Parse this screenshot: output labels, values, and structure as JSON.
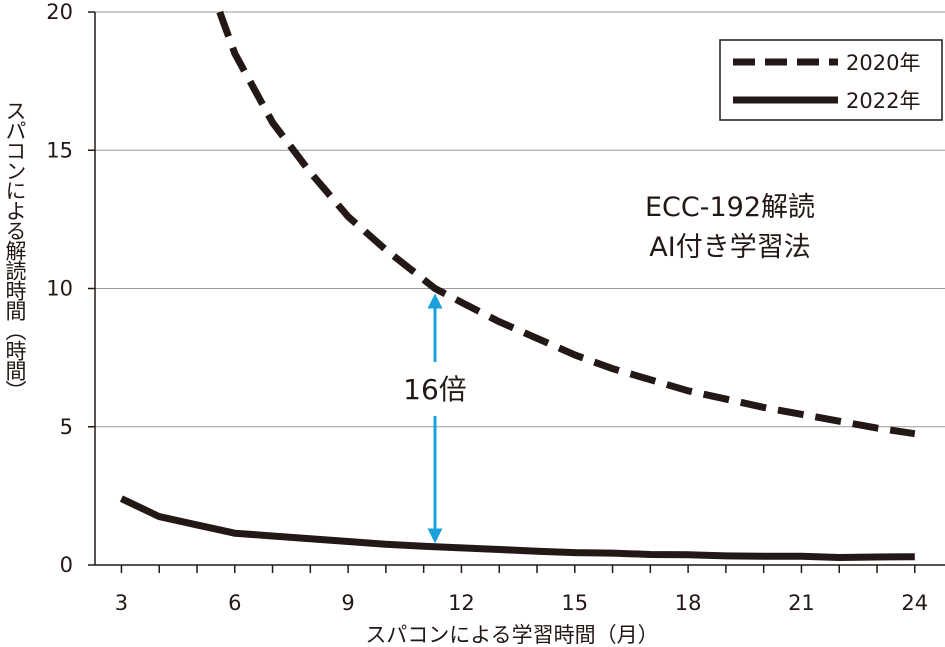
{
  "chart_data": {
    "type": "line",
    "title": "",
    "xlabel": "スパコンによる学習時間（月）",
    "ylabel": "スパコンによる解読時間（時間）",
    "xlim": [
      2.3,
      24.8
    ],
    "ylim": [
      0,
      20
    ],
    "x_ticks": [
      3,
      6,
      9,
      12,
      15,
      18,
      21,
      24
    ],
    "y_ticks": [
      0,
      5,
      10,
      15,
      20
    ],
    "grid": "horizontal",
    "legend": "top-right",
    "series": [
      {
        "name": "2020年",
        "style": "dashed",
        "color": "#231815",
        "x": [
          5.6,
          6,
          7,
          8,
          9,
          10,
          11.3,
          12,
          13,
          14,
          15,
          16,
          17,
          18,
          19,
          20,
          21,
          22,
          23,
          24
        ],
        "y": [
          20.0,
          18.5,
          16.0,
          14.2,
          12.6,
          11.4,
          10.0,
          9.5,
          8.8,
          8.2,
          7.6,
          7.1,
          6.7,
          6.3,
          6.0,
          5.7,
          5.45,
          5.2,
          4.95,
          4.75
        ]
      },
      {
        "name": "2022年",
        "style": "solid",
        "color": "#231815",
        "x": [
          3,
          4,
          5,
          6,
          7,
          8,
          9,
          10,
          11,
          12,
          13,
          14,
          15,
          16,
          17,
          18,
          19,
          20,
          21,
          22,
          23,
          24
        ],
        "y": [
          2.4,
          1.75,
          1.45,
          1.15,
          1.05,
          0.95,
          0.85,
          0.75,
          0.68,
          0.62,
          0.56,
          0.5,
          0.45,
          0.43,
          0.38,
          0.37,
          0.33,
          0.32,
          0.32,
          0.27,
          0.29,
          0.3
        ]
      }
    ],
    "annotations": {
      "method_lines": [
        "ECC-192解読",
        "AI付き学習法"
      ],
      "ratio_label": "16倍",
      "arrow_color": "#1aa0db",
      "arrow_x": 11.3,
      "arrow_from": 0.6,
      "arrow_to": 10.0
    }
  }
}
